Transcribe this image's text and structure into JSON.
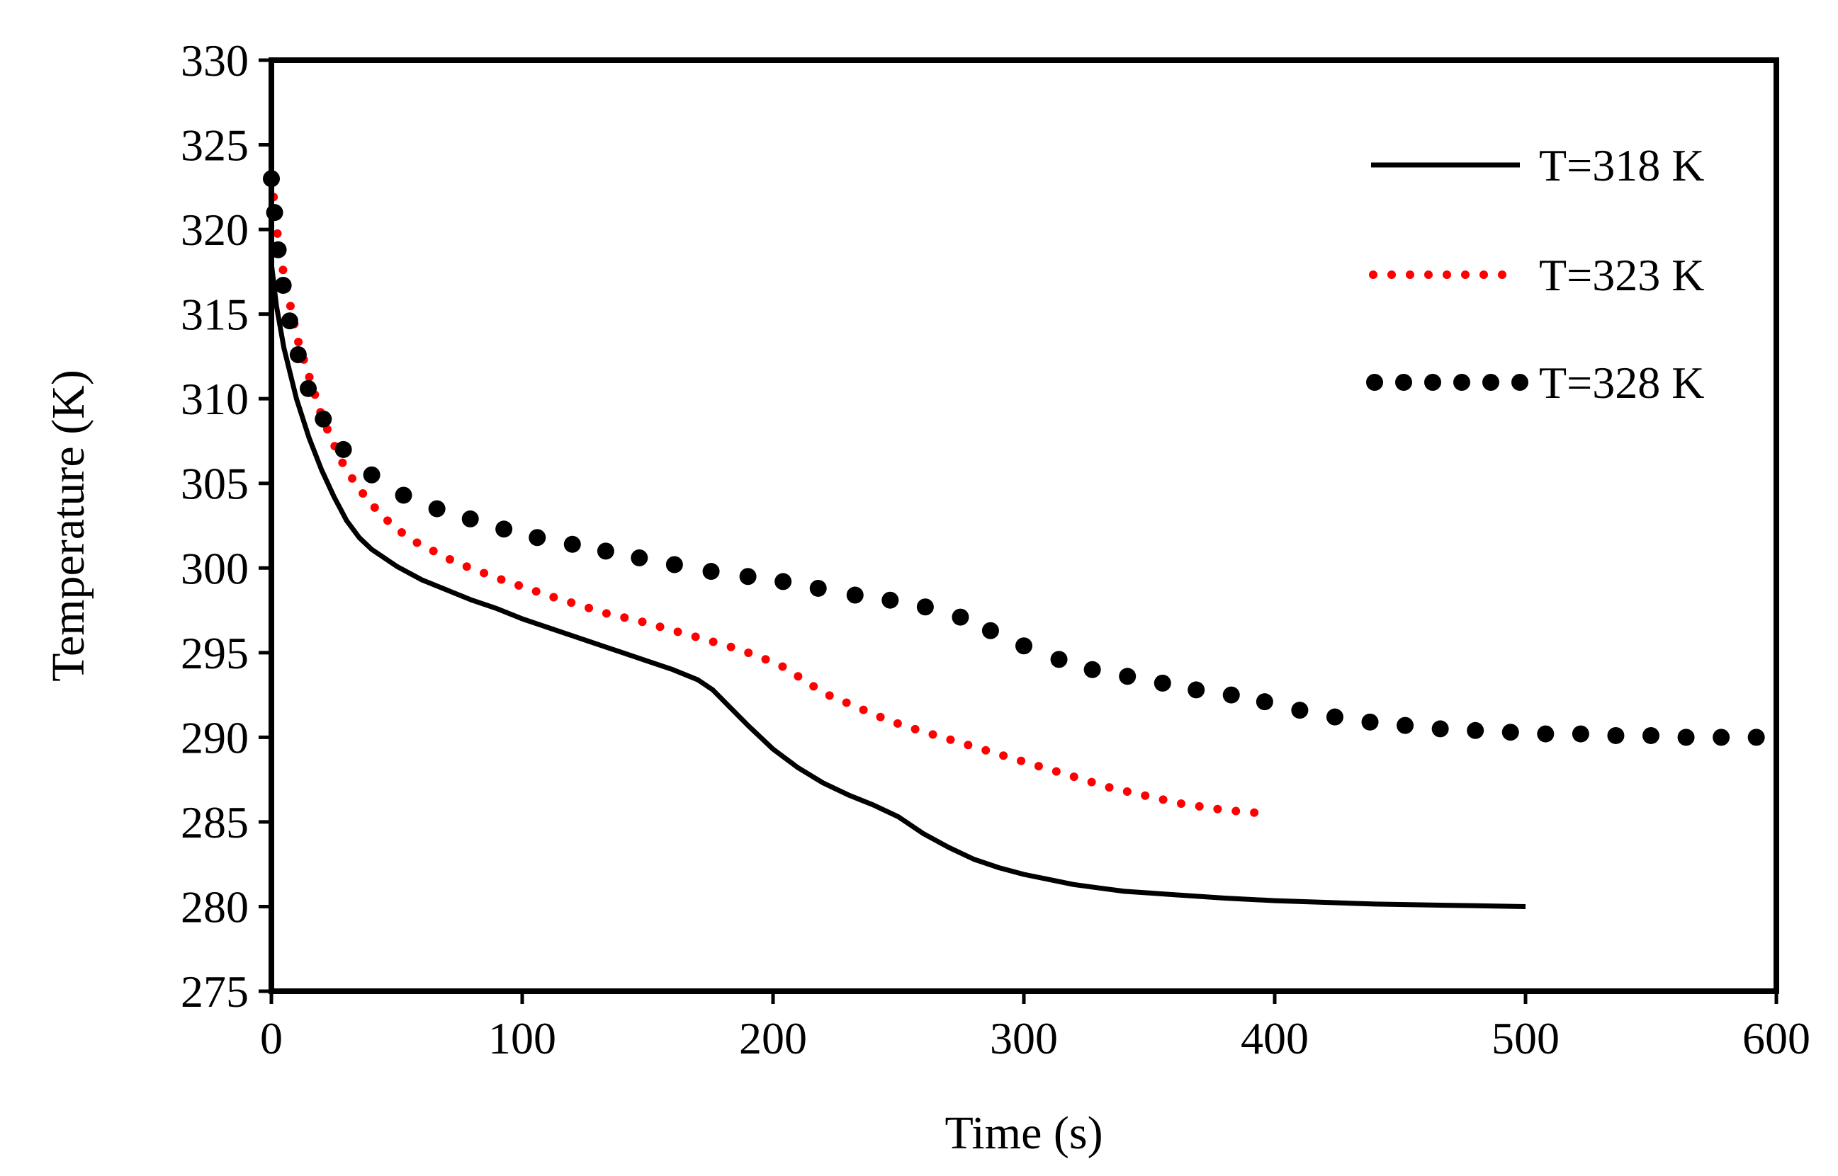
{
  "chart_data": {
    "type": "line",
    "title": "",
    "xlabel": "Time (s)",
    "ylabel": "Temperature (K)",
    "xlim": [
      0,
      600
    ],
    "ylim": [
      275,
      330
    ],
    "xticks": [
      0,
      100,
      200,
      300,
      400,
      500,
      600
    ],
    "yticks": [
      275,
      280,
      285,
      290,
      295,
      300,
      305,
      310,
      315,
      320,
      325,
      330
    ],
    "grid": false,
    "legend_position": "top-right",
    "series": [
      {
        "name": "T=318 K",
        "style": "solid",
        "color": "#000000",
        "x": [
          0,
          2,
          5,
          10,
          15,
          20,
          25,
          30,
          35,
          40,
          50,
          60,
          70,
          80,
          90,
          100,
          110,
          120,
          130,
          140,
          150,
          160,
          170,
          176,
          180,
          190,
          200,
          210,
          220,
          230,
          240,
          250,
          260,
          270,
          280,
          290,
          300,
          310,
          320,
          330,
          340,
          350,
          360,
          380,
          400,
          420,
          440,
          460,
          480,
          500
        ],
        "y": [
          318,
          315.5,
          313,
          310,
          307.7,
          305.8,
          304.2,
          302.8,
          301.8,
          301.1,
          300.1,
          299.3,
          298.7,
          298.1,
          297.6,
          297.0,
          296.5,
          296.0,
          295.5,
          295.0,
          294.5,
          294.0,
          293.4,
          292.8,
          292.2,
          290.7,
          289.3,
          288.2,
          287.3,
          286.6,
          286.0,
          285.3,
          284.3,
          283.5,
          282.8,
          282.3,
          281.9,
          281.6,
          281.3,
          281.1,
          280.9,
          280.8,
          280.7,
          280.5,
          280.35,
          280.25,
          280.15,
          280.1,
          280.05,
          280.0
        ]
      },
      {
        "name": "T=323 K",
        "style": "dotted",
        "color": "#ff0000",
        "x": [
          0,
          1,
          2,
          3,
          5,
          7,
          9,
          11,
          14,
          17,
          20,
          24,
          28,
          33,
          38,
          44,
          51,
          58,
          66,
          74,
          83,
          92,
          102,
          112,
          123,
          134,
          146,
          158,
          170,
          182,
          194,
          205,
          214,
          222,
          230,
          238,
          246,
          254,
          263,
          272,
          281,
          290,
          299,
          308,
          317,
          326,
          335,
          344,
          353,
          362,
          371,
          380,
          388,
          396
        ],
        "y": [
          323,
          321.8,
          320.3,
          319.0,
          317.3,
          315.9,
          314.5,
          313.2,
          311.8,
          310.4,
          309.0,
          307.6,
          306.3,
          305.1,
          304.1,
          303.1,
          302.2,
          301.5,
          300.9,
          300.3,
          299.8,
          299.3,
          298.8,
          298.3,
          297.8,
          297.3,
          296.9,
          296.4,
          295.9,
          295.4,
          294.8,
          294.1,
          293.2,
          292.5,
          292.0,
          291.5,
          291.0,
          290.6,
          290.2,
          289.8,
          289.4,
          289.0,
          288.6,
          288.2,
          287.8,
          287.4,
          287.0,
          286.7,
          286.4,
          286.1,
          285.9,
          285.7,
          285.6,
          285.5
        ]
      },
      {
        "name": "T=328 K",
        "style": "dotted-large",
        "color": "#000000",
        "x": [
          0,
          1.3,
          2.7,
          4.7,
          7.3,
          10.7,
          14.7,
          20.7,
          28.7,
          40,
          52.7,
          66,
          79.3,
          92.7,
          106,
          120,
          133.3,
          146.7,
          160.7,
          175.3,
          190,
          204,
          218,
          232.7,
          246.7,
          260.7,
          274.7,
          286.7,
          300,
          314,
          327.3,
          341.3,
          355.3,
          368.7,
          382.7,
          396,
          410,
          424,
          438,
          452,
          466,
          480,
          494,
          508,
          522,
          536,
          550,
          564,
          578,
          592
        ],
        "y": [
          323,
          321,
          318.8,
          316.7,
          314.6,
          312.6,
          310.6,
          308.8,
          307.0,
          305.5,
          304.3,
          303.5,
          302.9,
          302.3,
          301.8,
          301.4,
          301.0,
          300.6,
          300.2,
          299.8,
          299.5,
          299.2,
          298.8,
          298.4,
          298.1,
          297.7,
          297.1,
          296.3,
          295.4,
          294.6,
          294.0,
          293.6,
          293.2,
          292.8,
          292.5,
          292.1,
          291.6,
          291.2,
          290.9,
          290.7,
          290.5,
          290.4,
          290.3,
          290.2,
          290.2,
          290.1,
          290.1,
          290.0,
          290.0,
          290.0
        ]
      }
    ]
  }
}
